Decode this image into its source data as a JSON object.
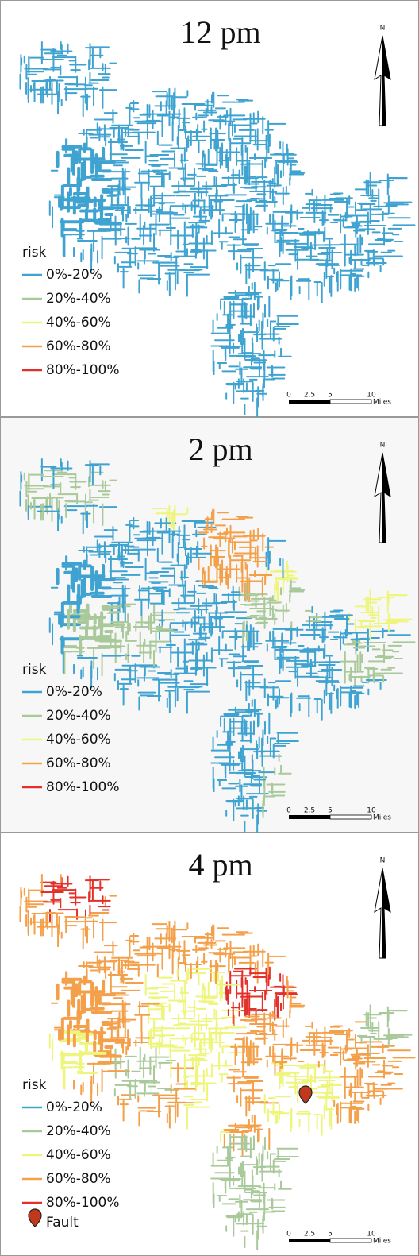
{
  "panels": [
    {
      "title": "12 pm",
      "legend": {
        "title": "risk",
        "items": [
          {
            "label": "0%-20%",
            "color": "#3fa3d1"
          },
          {
            "label": "20%-40%",
            "color": "#a9c99b"
          },
          {
            "label": "40%-60%",
            "color": "#eef57c"
          },
          {
            "label": "60%-80%",
            "color": "#f4a04a"
          },
          {
            "label": "80%-100%",
            "color": "#e3302a"
          }
        ]
      },
      "north": "N",
      "scale": {
        "ticks": [
          "0",
          "2.5",
          "5",
          "10"
        ],
        "unit": "Miles"
      }
    },
    {
      "title": "2 pm",
      "legend": {
        "title": "risk",
        "items": [
          {
            "label": "0%-20%",
            "color": "#3fa3d1"
          },
          {
            "label": "20%-40%",
            "color": "#a9c99b"
          },
          {
            "label": "40%-60%",
            "color": "#eef57c"
          },
          {
            "label": "60%-80%",
            "color": "#f4a04a"
          },
          {
            "label": "80%-100%",
            "color": "#e3302a"
          }
        ]
      },
      "north": "N",
      "scale": {
        "ticks": [
          "0",
          "2.5",
          "5",
          "10"
        ],
        "unit": "Miles"
      }
    },
    {
      "title": "4 pm",
      "legend": {
        "title": "risk",
        "items": [
          {
            "label": "0%-20%",
            "color": "#3fa3d1"
          },
          {
            "label": "20%-40%",
            "color": "#a9c99b"
          },
          {
            "label": "40%-60%",
            "color": "#eef57c"
          },
          {
            "label": "60%-80%",
            "color": "#f4a04a"
          },
          {
            "label": "80%-100%",
            "color": "#e3302a"
          }
        ]
      },
      "north": "N",
      "scale": {
        "ticks": [
          "0",
          "2.5",
          "5",
          "10"
        ],
        "unit": "Miles"
      },
      "fault": "Fault"
    }
  ]
}
